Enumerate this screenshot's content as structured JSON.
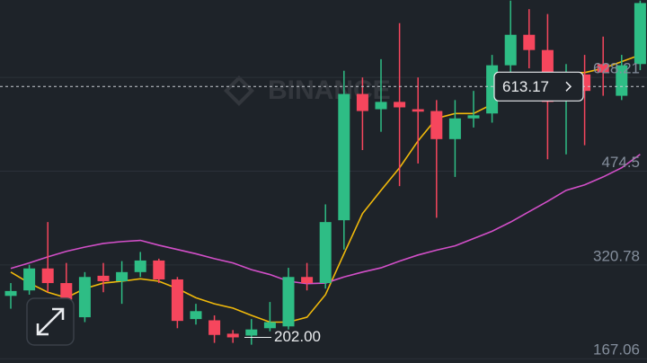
{
  "chart_data": {
    "type": "candlestick",
    "watermark": "BINANCE",
    "open": [
      270,
      279,
      315,
      291,
      235,
      303,
      294,
      309,
      328,
      297,
      232,
      230,
      208,
      205,
      217,
      220,
      301,
      291,
      394,
      601,
      576,
      588,
      576,
      573,
      527,
      561,
      569,
      648,
      698,
      673,
      598,
      633,
      650,
      598,
      650
    ],
    "high": [
      291,
      321,
      391,
      324,
      309,
      324,
      327,
      342,
      331,
      301,
      257,
      238,
      214,
      232,
      260,
      316,
      324,
      420,
      639,
      628,
      658,
      717,
      628,
      591,
      591,
      606,
      665,
      754,
      740,
      732,
      650,
      665,
      695,
      665,
      754
    ],
    "low": [
      249,
      272,
      276,
      257,
      227,
      276,
      257,
      301,
      291,
      217,
      223,
      193,
      193,
      190,
      212,
      215,
      279,
      282,
      346,
      509,
      539,
      450,
      487,
      398,
      465,
      546,
      554,
      636,
      643,
      494,
      502,
      517,
      598,
      591,
      640
    ],
    "close": [
      278,
      315,
      291,
      264,
      301,
      294,
      309,
      328,
      297,
      229,
      245,
      206,
      202,
      215,
      227,
      301,
      291,
      391,
      601,
      573,
      588,
      579,
      572,
      527,
      561,
      566,
      648,
      698,
      673,
      588,
      613,
      606,
      636,
      648,
      750
    ],
    "up_color": "#2ebd85",
    "down_color": "#f6465d",
    "lines": [
      {
        "color": "#f0b90b",
        "values": [
          309,
          291,
          276,
          267,
          282,
          291,
          294,
          298,
          294,
          282,
          267,
          257,
          250,
          238,
          227,
          227,
          235,
          272,
          339,
          405,
          443,
          480,
          524,
          561,
          569,
          569,
          584,
          606,
          613,
          633,
          636,
          636,
          643,
          654,
          665
        ]
      },
      {
        "color": "#d24fc8",
        "values": [
          315,
          324,
          334,
          343,
          350,
          356,
          359,
          361,
          353,
          346,
          339,
          331,
          324,
          313,
          305,
          294,
          290,
          291,
          301,
          309,
          316,
          327,
          337,
          345,
          352,
          364,
          376,
          391,
          408,
          425,
          443,
          452,
          465,
          480,
          502
        ]
      }
    ],
    "ylim": [
      160,
      755
    ],
    "yticks": [
      167.06,
      320.78,
      474.5,
      628.21
    ],
    "grid": true,
    "last_price": {
      "value": 613.17,
      "label": "613.17"
    },
    "annotations": [
      {
        "value": 202,
        "label": "202.00"
      }
    ]
  }
}
